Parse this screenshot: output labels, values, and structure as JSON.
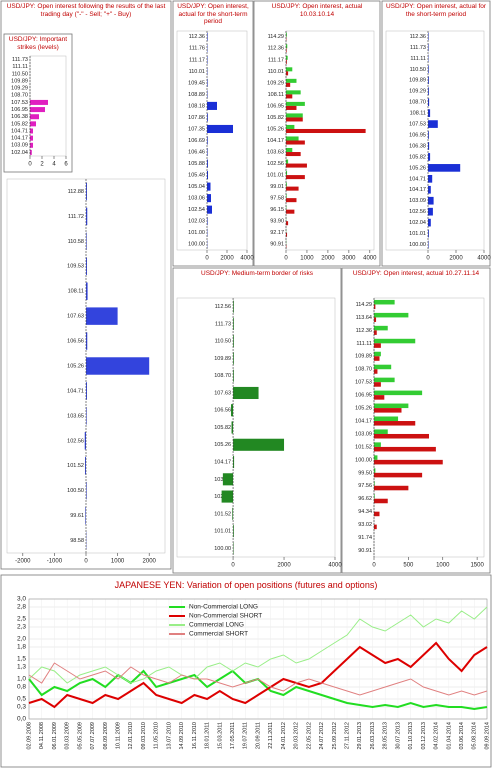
{
  "chart_data": [
    {
      "type": "hbar",
      "title": "USD/JPY: Open interest following the results of the last trading day (\"-\" - Sell; \"+\" - Buy)",
      "categories": [
        "112.88",
        "111.72",
        "110.58",
        "109.53",
        "108.11",
        "107.63",
        "106.56",
        "105.26",
        "104.71",
        "103.65",
        "102.56",
        "101.52",
        "100.50",
        "99.61",
        "98.58"
      ],
      "values": [
        30,
        40,
        20,
        30,
        50,
        1000,
        40,
        2000,
        30,
        20,
        -40,
        -30,
        20,
        -20,
        10
      ],
      "color": "#3344dd",
      "xlim": [
        -2500,
        2500
      ],
      "xticks": [
        -2000,
        -1000,
        0,
        1000,
        2000
      ]
    },
    {
      "type": "hbar",
      "title": "USD/JPY: Important strikes (levels)",
      "categories": [
        "111.73",
        "111.11",
        "110.50",
        "109.89",
        "109.29",
        "108.70",
        "107.53",
        "106.95",
        "106.38",
        "105.82",
        "104.71",
        "104.17",
        "103.09",
        "102.04"
      ],
      "values": [
        0,
        0,
        0,
        0,
        0,
        0,
        3,
        2.5,
        1.5,
        1,
        0.5,
        0.5,
        0.5,
        0.3
      ],
      "color": "#e020c0",
      "xlim": [
        0,
        6
      ],
      "xticks": [
        0,
        2,
        4,
        6
      ]
    },
    {
      "type": "hbar",
      "title": "USD/JPY: Open interest, actual for the short-term period",
      "categories": [
        "112.36",
        "111.76",
        "111.17",
        "110.01",
        "109.45",
        "108.89",
        "108.18",
        "107.86",
        "107.35",
        "106.69",
        "106.46",
        "105.88",
        "105.49",
        "105.04",
        "103.06",
        "102.54",
        "102.03",
        "101.00",
        "100.00"
      ],
      "values": [
        60,
        40,
        50,
        40,
        60,
        50,
        1000,
        80,
        2600,
        70,
        60,
        90,
        100,
        350,
        400,
        500,
        60,
        40,
        30
      ],
      "color": "#1a2fd6",
      "xlim": [
        -3000,
        4000
      ],
      "xticks": [
        0,
        2000,
        4000
      ]
    },
    {
      "type": "hbar",
      "title": "USD/JPY: Open interest, actual 10.03.10.14",
      "categories": [
        "114.29",
        "112.36",
        "111.17",
        "110.01",
        "109.29",
        "108.11",
        "106.95",
        "105.82",
        "105.26",
        "104.17",
        "103.63",
        "102.56",
        "101.01",
        "99.01",
        "97.58",
        "96.15",
        "93.90",
        "92.17",
        "90.91"
      ],
      "series": [
        {
          "color": "#33cc33",
          "values": [
            40,
            60,
            80,
            300,
            500,
            700,
            900,
            800,
            400,
            600,
            300,
            100,
            50,
            40,
            30,
            20,
            10,
            10,
            10
          ]
        },
        {
          "color": "#cc1111",
          "values": [
            20,
            30,
            40,
            100,
            200,
            300,
            500,
            800,
            3800,
            900,
            700,
            1000,
            900,
            600,
            500,
            400,
            100,
            50,
            20
          ]
        }
      ],
      "xlim": [
        0,
        4200
      ],
      "xticks": [
        0,
        1000,
        2000,
        3000,
        4000
      ]
    },
    {
      "type": "hbar",
      "title": "USD/JPY: Open interest, actual for the short-term period",
      "categories": [
        "112.36",
        "111.73",
        "111.11",
        "110.50",
        "109.89",
        "109.29",
        "108.70",
        "108.11",
        "107.53",
        "106.95",
        "106.38",
        "105.82",
        "105.26",
        "104.71",
        "104.17",
        "103.09",
        "102.56",
        "102.04",
        "101.01",
        "100.00"
      ],
      "values": [
        40,
        40,
        30,
        50,
        60,
        60,
        80,
        150,
        700,
        60,
        80,
        150,
        2300,
        300,
        200,
        400,
        350,
        200,
        60,
        40
      ],
      "color": "#1a2fd6",
      "xlim": [
        -3000,
        4000
      ],
      "xticks": [
        0,
        2000,
        4000
      ]
    },
    {
      "type": "hbar",
      "title": "USD/JPY: Medium-term border of risks",
      "categories": [
        "112.56",
        "111.73",
        "110.50",
        "109.89",
        "108.70",
        "107.63",
        "106.56",
        "105.82",
        "105.26",
        "104.17",
        "103.09",
        "102.56",
        "101.52",
        "101.01",
        "100.00"
      ],
      "values": [
        30,
        30,
        30,
        30,
        30,
        1000,
        -80,
        -60,
        2000,
        40,
        -400,
        -450,
        -30,
        30,
        20
      ],
      "color": "#228822",
      "xlim": [
        -2200,
        4000
      ],
      "xticks": [
        0,
        2000,
        4000
      ]
    },
    {
      "type": "hbar",
      "title": "USD/JPY: Open interest, actual 10.27.11.14",
      "categories": [
        "114.29",
        "113.64",
        "112.36",
        "111.11",
        "109.89",
        "108.70",
        "107.53",
        "106.95",
        "105.26",
        "104.17",
        "103.09",
        "101.52",
        "100.00",
        "99.50",
        "97.56",
        "96.62",
        "94.34",
        "93.02",
        "91.74",
        "90.91"
      ],
      "series": [
        {
          "color": "#33cc33",
          "values": [
            300,
            500,
            200,
            600,
            100,
            250,
            300,
            700,
            500,
            350,
            200,
            100,
            50,
            20,
            10,
            10,
            0,
            0,
            0,
            0
          ]
        },
        {
          "color": "#cc1111",
          "values": [
            20,
            30,
            40,
            100,
            80,
            50,
            100,
            150,
            400,
            600,
            800,
            900,
            1000,
            700,
            500,
            200,
            80,
            40,
            0,
            0
          ]
        }
      ],
      "xlim": [
        0,
        1600
      ],
      "xticks": [
        0,
        500,
        1000,
        1500
      ]
    },
    {
      "type": "line",
      "title": "JAPANESE YEN: Variation of open positions (futures and options)",
      "categories": [
        "02.09.2008",
        "04.11.2008",
        "06.01.2009",
        "03.03.2009",
        "05.05.2009",
        "07.07.2009",
        "08.09.2009",
        "10.11.2009",
        "12.01.2010",
        "09.03.2010",
        "11.05.2010",
        "13.07.2010",
        "14.09.2010",
        "16.11.2010",
        "18.01.2011",
        "15.03.2011",
        "17.05.2011",
        "19.07.2011",
        "20.09.2011",
        "22.11.2011",
        "24.01.2012",
        "20.03.2012",
        "22.05.2012",
        "24.07.2012",
        "25.09.2012",
        "27.11.2012",
        "29.01.2013",
        "26.03.2013",
        "28.05.2013",
        "30.07.2013",
        "01.10.2013",
        "03.12.2013",
        "04.02.2014",
        "01.04.2014",
        "03.06.2014",
        "05.08.2014",
        "09.09.2014"
      ],
      "series": [
        {
          "name": "Non-Commercial LONG",
          "color": "#22dd22",
          "width": 2,
          "values": [
            1.0,
            0.6,
            0.8,
            0.7,
            0.9,
            1.0,
            0.8,
            1.1,
            0.9,
            1.2,
            0.8,
            0.9,
            1.0,
            1.1,
            0.8,
            1.0,
            1.2,
            0.9,
            1.0,
            0.7,
            0.6,
            0.8,
            0.7,
            0.6,
            0.5,
            0.4,
            0.35,
            0.3,
            0.35,
            0.3,
            0.4,
            0.3,
            0.35,
            0.3,
            0.3,
            0.25,
            0.3
          ]
        },
        {
          "name": "Non-Commercial SHORT",
          "color": "#dd0000",
          "width": 2,
          "values": [
            0.4,
            0.5,
            0.3,
            0.6,
            0.5,
            0.4,
            0.6,
            0.5,
            0.7,
            0.9,
            0.6,
            0.5,
            0.4,
            0.6,
            0.5,
            0.7,
            0.5,
            0.4,
            0.6,
            0.8,
            1.0,
            0.9,
            0.8,
            0.9,
            1.2,
            1.5,
            1.8,
            1.6,
            1.4,
            1.5,
            1.3,
            1.6,
            1.9,
            1.5,
            1.2,
            1.6,
            1.8
          ]
        },
        {
          "name": "Commercial LONG",
          "color": "#99ee88",
          "width": 1,
          "values": [
            1.0,
            1.3,
            1.2,
            0.9,
            1.1,
            1.2,
            1.3,
            1.1,
            0.9,
            1.0,
            1.2,
            1.3,
            1.1,
            1.0,
            1.3,
            1.4,
            1.2,
            1.4,
            1.3,
            1.5,
            1.6,
            1.4,
            1.5,
            1.7,
            1.9,
            2.1,
            2.5,
            2.3,
            2.2,
            2.4,
            2.6,
            2.3,
            2.5,
            2.4,
            2.7,
            2.5,
            2.8
          ]
        },
        {
          "name": "Commercial SHORT",
          "color": "#e08080",
          "width": 1,
          "values": [
            1.1,
            0.9,
            1.4,
            1.2,
            1.0,
            1.1,
            1.2,
            1.0,
            1.3,
            1.1,
            1.0,
            0.9,
            1.1,
            1.0,
            1.0,
            0.9,
            0.8,
            0.9,
            1.0,
            0.8,
            0.7,
            0.9,
            1.0,
            0.9,
            0.8,
            0.7,
            0.6,
            0.7,
            0.8,
            0.9,
            1.0,
            0.8,
            0.7,
            0.6,
            0.7,
            0.6,
            0.7
          ]
        }
      ],
      "ylim": [
        0,
        3.0
      ],
      "yticks": [
        {
          "value": 0,
          "label": "0,0"
        },
        {
          "value": 0.3,
          "label": "0,3"
        },
        {
          "value": 0.5,
          "label": "0,5"
        },
        {
          "value": 0.8,
          "label": "0,8"
        },
        {
          "value": 1.0,
          "label": "1,0"
        },
        {
          "value": 1.3,
          "label": "1,3"
        },
        {
          "value": 1.5,
          "label": "1,5"
        },
        {
          "value": 1.8,
          "label": "1,8"
        },
        {
          "value": 2.0,
          "label": "2,0"
        },
        {
          "value": 2.3,
          "label": "2,3"
        },
        {
          "value": 2.5,
          "label": "2,5"
        },
        {
          "value": 2.8,
          "label": "2,8"
        },
        {
          "value": 3.0,
          "label": "3,0"
        }
      ],
      "grid": true
    }
  ]
}
